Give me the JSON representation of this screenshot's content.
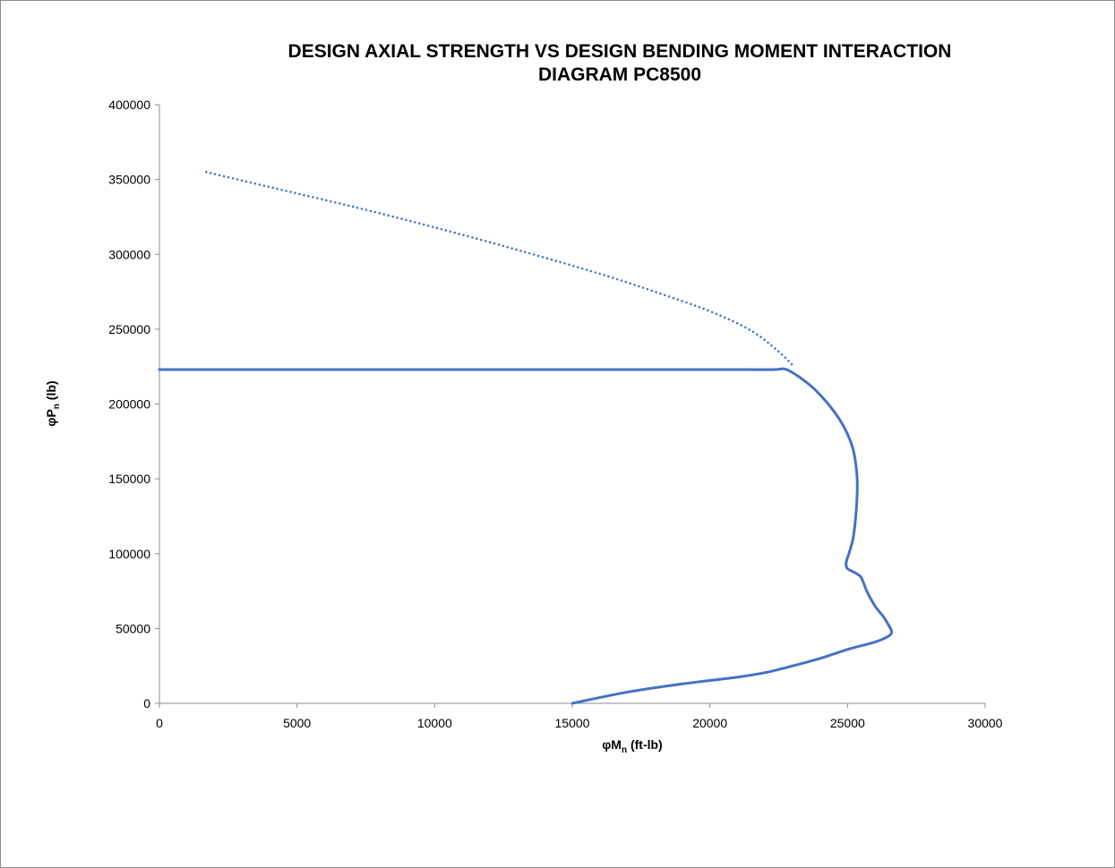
{
  "chart_data": {
    "type": "line",
    "title": [
      "DESIGN AXIAL STRENGTH VS DESIGN BENDING MOMENT INTERACTION",
      "DIAGRAM PC8500"
    ],
    "xlabel": {
      "prefix": "φM",
      "sub": "n",
      "suffix": " (ft-lb)"
    },
    "ylabel": {
      "prefix": "φP",
      "sub": "n",
      "suffix": " (lb)"
    },
    "xlim": [
      0,
      30000
    ],
    "ylim": [
      0,
      400000
    ],
    "xticks": [
      0,
      5000,
      10000,
      15000,
      20000,
      25000,
      30000
    ],
    "yticks": [
      0,
      50000,
      100000,
      150000,
      200000,
      250000,
      300000,
      350000,
      400000
    ],
    "grid": false,
    "legend": "none",
    "colors": {
      "series": "#4472c4",
      "axis": "#8c8c8c"
    },
    "series": [
      {
        "style": "solid",
        "points": [
          [
            15000,
            0
          ],
          [
            17000,
            7500
          ],
          [
            19000,
            13000
          ],
          [
            21000,
            17500
          ],
          [
            22000,
            20500
          ],
          [
            23000,
            25000
          ],
          [
            24000,
            30000
          ],
          [
            25000,
            36000
          ],
          [
            26000,
            41000
          ],
          [
            26500,
            45000
          ],
          [
            26600,
            48000
          ],
          [
            26500,
            52000
          ],
          [
            26300,
            58000
          ],
          [
            26000,
            65000
          ],
          [
            25700,
            75000
          ],
          [
            25500,
            84000
          ],
          [
            25300,
            87000
          ],
          [
            25000,
            90000
          ],
          [
            24950,
            94000
          ],
          [
            25050,
            100000
          ],
          [
            25200,
            110000
          ],
          [
            25300,
            125000
          ],
          [
            25350,
            140000
          ],
          [
            25350,
            150000
          ],
          [
            25300,
            160000
          ],
          [
            25200,
            170000
          ],
          [
            25000,
            180000
          ],
          [
            24700,
            190000
          ],
          [
            24300,
            200000
          ],
          [
            23800,
            210000
          ],
          [
            23400,
            216000
          ],
          [
            23000,
            221000
          ],
          [
            22700,
            223500
          ],
          [
            22300,
            223000
          ],
          [
            21000,
            223000
          ],
          [
            10000,
            223000
          ],
          [
            0,
            223000
          ]
        ]
      },
      {
        "style": "dotted",
        "points": [
          [
            1700,
            355000
          ],
          [
            4000,
            345000
          ],
          [
            7000,
            332000
          ],
          [
            10000,
            318000
          ],
          [
            13000,
            303000
          ],
          [
            16000,
            287000
          ],
          [
            18000,
            275000
          ],
          [
            20000,
            262000
          ],
          [
            21500,
            249000
          ],
          [
            22500,
            235000
          ],
          [
            23000,
            226000
          ]
        ]
      }
    ]
  }
}
